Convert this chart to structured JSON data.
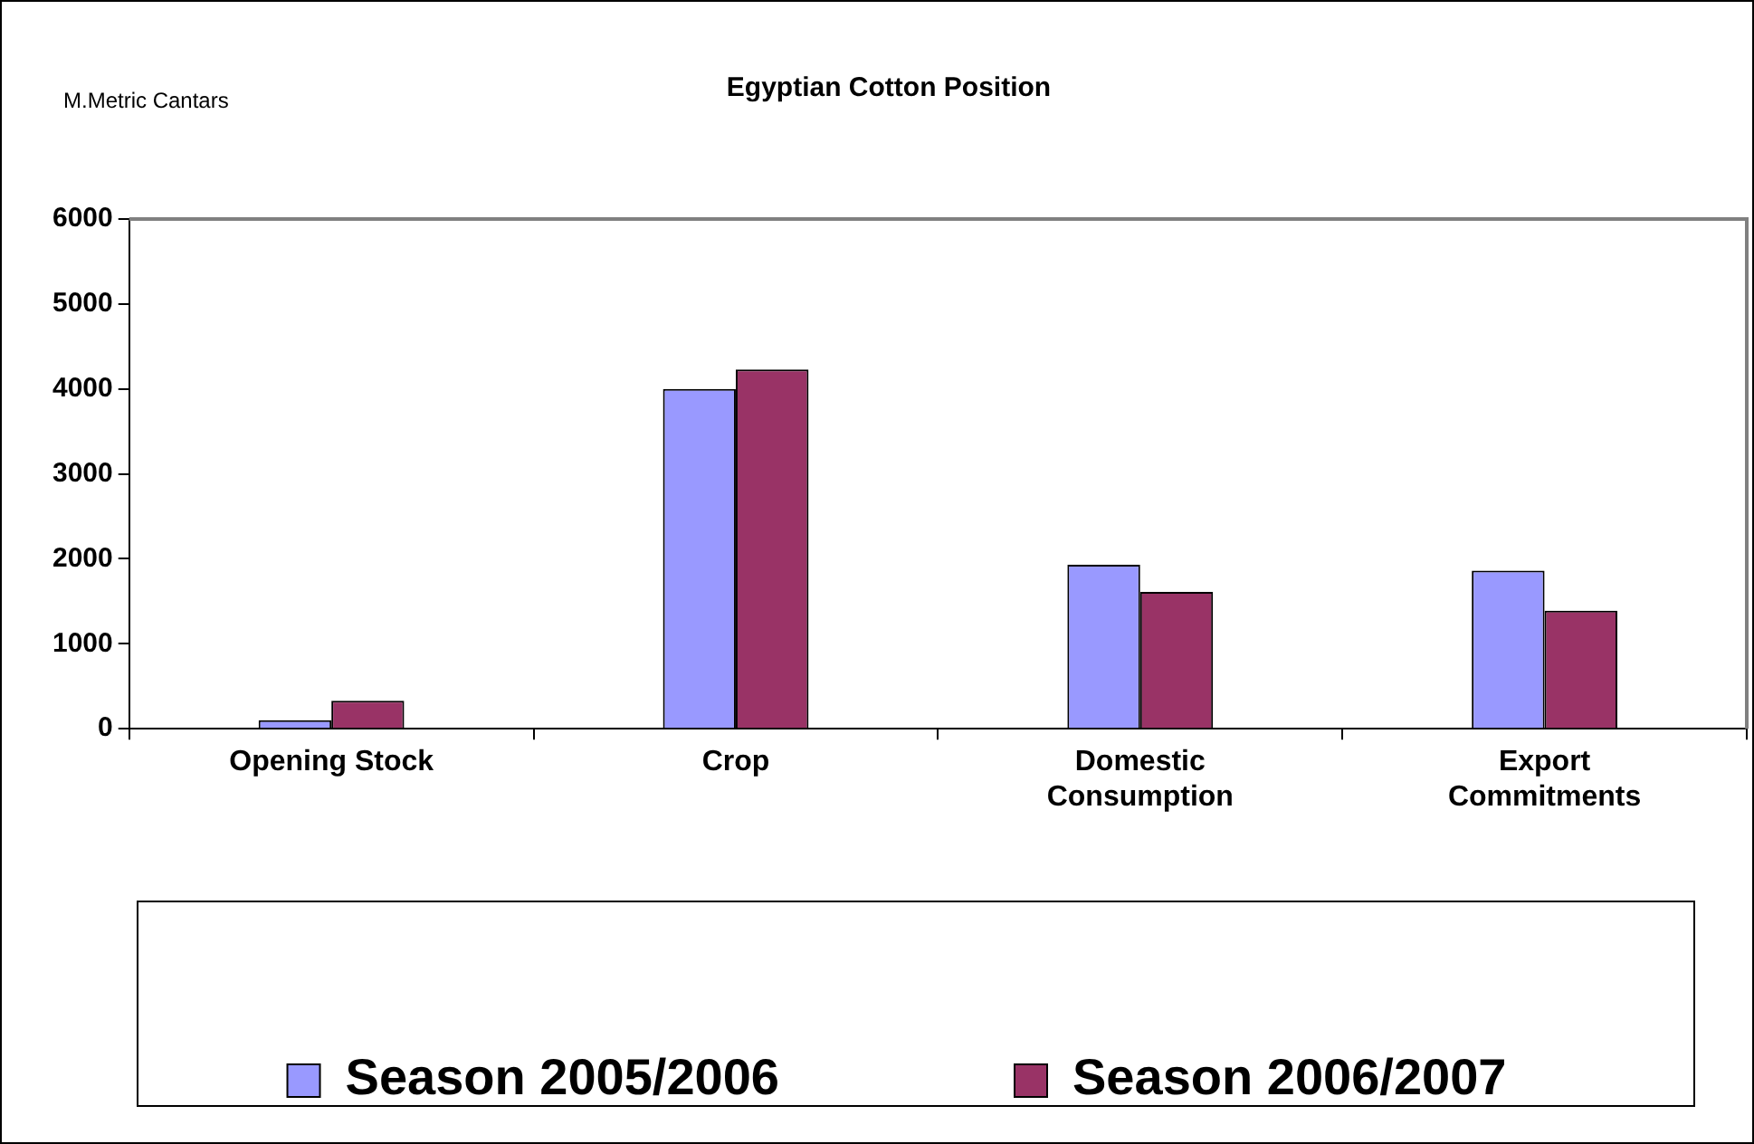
{
  "chart_data": {
    "type": "bar",
    "title": "Egyptian Cotton Position",
    "ylabel": "M.Metric Cantars",
    "categories": [
      "Opening Stock",
      "Crop",
      "Domestic Consumption",
      "Export Commitments"
    ],
    "series": [
      {
        "name": "Season 2005/2006",
        "color": "#9999ff",
        "values": [
          100,
          4000,
          1930,
          1860
        ]
      },
      {
        "name": "Season 2006/2007",
        "color": "#993366",
        "values": [
          330,
          4230,
          1610,
          1390
        ]
      }
    ],
    "ylim": [
      0,
      6000
    ],
    "yticks": [
      0,
      1000,
      2000,
      3000,
      4000,
      5000,
      6000
    ],
    "grid": false,
    "legend": "bottom"
  }
}
